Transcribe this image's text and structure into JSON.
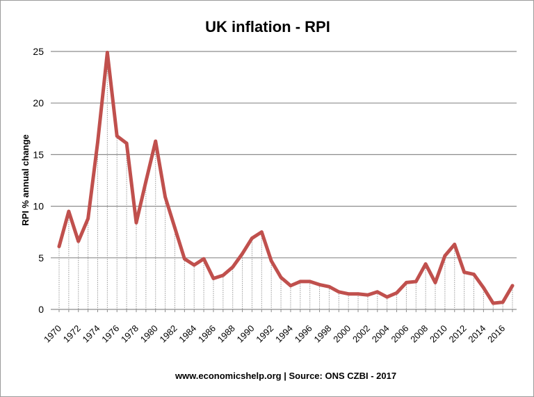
{
  "chart_data": {
    "type": "line",
    "title": "UK inflation - RPI",
    "ylabel": "RPI % annual change",
    "xlabel": "",
    "footer": "www.economicshelp.org | Source: ONS CZBI - 2017",
    "ylim": [
      0,
      25
    ],
    "yticks": [
      0,
      5,
      10,
      15,
      20,
      25
    ],
    "grid": true,
    "line_color": "#c0504d",
    "x": [
      1970,
      1971,
      1972,
      1973,
      1974,
      1975,
      1976,
      1977,
      1978,
      1979,
      1980,
      1981,
      1982,
      1983,
      1984,
      1985,
      1986,
      1987,
      1988,
      1989,
      1990,
      1991,
      1992,
      1993,
      1994,
      1995,
      1996,
      1997,
      1998,
      1999,
      2000,
      2001,
      2002,
      2003,
      2004,
      2005,
      2006,
      2007,
      2008,
      2009,
      2010,
      2011,
      2012,
      2013,
      2014,
      2015,
      2016,
      2017
    ],
    "xtick_labels": [
      "1970",
      "1972",
      "1974",
      "1976",
      "1978",
      "1980",
      "1982",
      "1984",
      "1986",
      "1988",
      "1990",
      "1992",
      "1994",
      "1996",
      "1998",
      "2000",
      "2002",
      "2004",
      "2006",
      "2008",
      "2010",
      "2012",
      "2014",
      "2016"
    ],
    "values": [
      6.1,
      9.5,
      6.6,
      8.8,
      16.2,
      24.9,
      16.8,
      16.1,
      8.4,
      12.4,
      16.3,
      10.9,
      7.9,
      4.9,
      4.3,
      4.9,
      3.0,
      3.3,
      4.1,
      5.4,
      6.9,
      7.5,
      4.7,
      3.1,
      2.3,
      2.7,
      2.7,
      2.4,
      2.2,
      1.7,
      1.5,
      1.5,
      1.4,
      1.7,
      1.2,
      1.6,
      2.6,
      2.7,
      4.4,
      2.6,
      5.2,
      6.3,
      3.6,
      3.4,
      2.1,
      0.6,
      0.7,
      2.3
    ]
  }
}
